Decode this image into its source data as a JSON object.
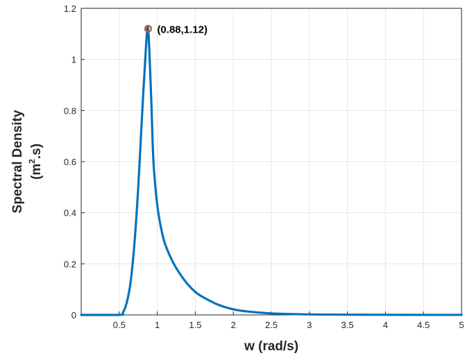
{
  "chart_data": {
    "type": "line",
    "title": "",
    "xlabel": "w (rad/s)",
    "ylabel_line1": "Spectral Density",
    "ylabel_line2_base": "(m",
    "ylabel_line2_sup": "2",
    "ylabel_line2_rest": ".s)",
    "xlim": [
      0,
      5
    ],
    "ylim": [
      0,
      1.2
    ],
    "x_ticks": [
      0.5,
      1,
      1.5,
      2,
      2.5,
      3,
      3.5,
      4,
      4.5,
      5
    ],
    "x_tick_labels": [
      "0.5",
      "1",
      "1.5",
      "2",
      "2.5",
      "3",
      "3.5",
      "4",
      "4.5",
      "5"
    ],
    "y_ticks": [
      0,
      0.2,
      0.4,
      0.6,
      0.8,
      1,
      1.2
    ],
    "y_tick_labels": [
      "0",
      "0.2",
      "0.4",
      "0.6",
      "0.8",
      "1",
      "1.2"
    ],
    "grid": true,
    "series": [
      {
        "color": "#0072BD",
        "x": [
          0,
          0.5,
          0.55,
          0.6,
          0.65,
          0.7,
          0.75,
          0.8,
          0.85,
          0.88,
          0.92,
          0.95,
          1.0,
          1.05,
          1.1,
          1.2,
          1.3,
          1.4,
          1.5,
          1.6,
          1.8,
          2.0,
          2.2,
          2.5,
          3.0,
          3.5,
          4.0,
          4.5,
          5.0
        ],
        "y": [
          0,
          0,
          0.01,
          0.05,
          0.13,
          0.28,
          0.5,
          0.78,
          1.04,
          1.12,
          0.85,
          0.6,
          0.43,
          0.34,
          0.28,
          0.21,
          0.16,
          0.12,
          0.09,
          0.07,
          0.04,
          0.022,
          0.013,
          0.006,
          0.002,
          0.001,
          0.0005,
          0.0002,
          0.0001
        ]
      }
    ],
    "annotation": {
      "x": 0.88,
      "y": 1.12,
      "label": "(0.88,1.12)",
      "marker_color": "#D95319"
    }
  }
}
